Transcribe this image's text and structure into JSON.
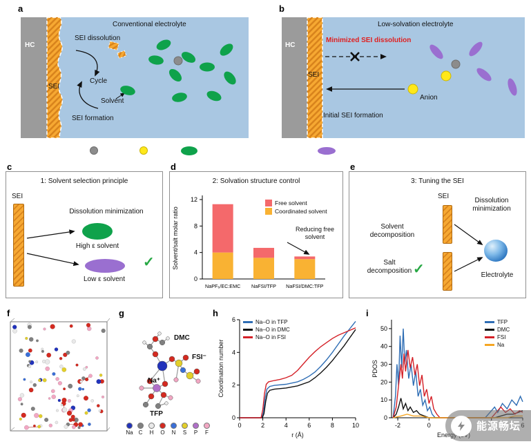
{
  "panels": {
    "a": {
      "label": "a",
      "title": "Conventional electrolyte",
      "hc": "HC",
      "sei": "SEI",
      "sei_dissolution": "SEI dissolution",
      "cycle": "Cycle",
      "solvent": "Solvent",
      "sei_formation": "SEI formation"
    },
    "b": {
      "label": "b",
      "title": "Low-solvation electrolyte",
      "hc": "HC",
      "sei": "SEI",
      "minimized_sei_dissolution": "Minimized SEI dissolution",
      "anion": "Anion",
      "initial_sei_formation": "Initial SEI formation"
    },
    "species_legend": {
      "na_ion": "Na ion",
      "anion": "Anion",
      "high_e_solvent": "High ε solvent",
      "low_e_solvent": "Low ε solvent"
    },
    "c": {
      "label": "c",
      "title": "1: Solvent selection principle",
      "sei": "SEI",
      "dissolution_minimization": "Dissolution minimization",
      "high_e_solvent": "High ε solvent",
      "low_e_solvent": "Low ε solvent",
      "check": "✓"
    },
    "d": {
      "label": "d",
      "title": "2: Solvation structure control"
    },
    "e": {
      "label": "e",
      "title": "3: Tuning the SEI",
      "sei": "SEI",
      "dissolution_minimization": "Dissolution minimization",
      "solvent_decomposition": "Solvent decomposition",
      "salt_decomposition": "Salt decomposition",
      "electrolyte": "Electrolyte",
      "check": "✓"
    },
    "f": {
      "label": "f"
    },
    "g": {
      "label": "g",
      "mol_dmc": "DMC",
      "mol_fsi": "FSI⁻",
      "mol_na": "Na⁺",
      "mol_tfp": "TFP",
      "atom_legend": [
        {
          "symbol": "Na",
          "color": "#2233bb"
        },
        {
          "symbol": "C",
          "color": "#808080"
        },
        {
          "symbol": "H",
          "color": "#e9e9e9"
        },
        {
          "symbol": "O",
          "color": "#d42a20"
        },
        {
          "symbol": "N",
          "color": "#3a6fd8"
        },
        {
          "symbol": "S",
          "color": "#e3cf2a"
        },
        {
          "symbol": "P",
          "color": "#b06fc8"
        },
        {
          "symbol": "F",
          "color": "#f2a7c3"
        }
      ]
    },
    "h": {
      "label": "h"
    },
    "i": {
      "label": "i"
    }
  },
  "colors": {
    "panel_background_blue": "#a9c7e2",
    "hc_gray": "#9b9b9b",
    "sei_orange": "#f6a832",
    "high_e_green": "#0fa24b",
    "low_e_purple": "#9a6fd0",
    "anion_yellow": "#ffe81a",
    "na_ion_gray": "#8c8c8c",
    "free_solvent_red": "#f4696b",
    "coordinated_solvent_orange": "#f9b233",
    "electrolyte_blue": "#3f82c9",
    "minimized_text_red": "#e01f1f",
    "check_green": "#27a844"
  },
  "chart_data": [
    {
      "id": "solvation-structure-control",
      "type": "bar",
      "stacked": true,
      "title": "2: Solvation structure control",
      "categories": [
        "NaPF₆/EC:EMC",
        "NaFSI/TFP",
        "NaFSI/DMC:TFP"
      ],
      "series": [
        {
          "name": "Coordinated solvent",
          "color": "#f9b233",
          "values": [
            4.0,
            3.2,
            3.0
          ]
        },
        {
          "name": "Free solvent",
          "color": "#f4696b",
          "values": [
            7.3,
            1.5,
            0.4
          ]
        }
      ],
      "xlabel": "",
      "ylabel": "Solvent/salt molar ratio",
      "ylim": [
        0,
        12
      ],
      "yticks": [
        0,
        4,
        8,
        12
      ],
      "annotation": "Reducing free solvent",
      "legend_position": "top-right"
    },
    {
      "id": "coordination-number",
      "type": "line",
      "xlabel": "r (Å)",
      "ylabel": "Coordination number",
      "xlim": [
        0,
        10
      ],
      "ylim": [
        0,
        6
      ],
      "xticks": [
        0,
        2,
        4,
        6,
        8,
        10
      ],
      "yticks": [
        0,
        2,
        4,
        6
      ],
      "legend_position": "top-left",
      "series": [
        {
          "name": "Na–O in TFP",
          "color": "#2e6db4",
          "points": [
            [
              0,
              0
            ],
            [
              1.9,
              0
            ],
            [
              2.05,
              0.3
            ],
            [
              2.2,
              1.2
            ],
            [
              2.35,
              1.75
            ],
            [
              2.6,
              1.92
            ],
            [
              3,
              1.98
            ],
            [
              4,
              2.05
            ],
            [
              5,
              2.2
            ],
            [
              5.5,
              2.35
            ],
            [
              6,
              2.55
            ],
            [
              6.5,
              2.8
            ],
            [
              7,
              3.15
            ],
            [
              7.5,
              3.55
            ],
            [
              8,
              4.0
            ],
            [
              8.5,
              4.5
            ],
            [
              9,
              5.0
            ],
            [
              9.5,
              5.45
            ],
            [
              10,
              5.9
            ]
          ]
        },
        {
          "name": "Na–O in DMC",
          "color": "#111111",
          "points": [
            [
              0,
              0
            ],
            [
              1.95,
              0
            ],
            [
              2.1,
              0.25
            ],
            [
              2.25,
              1.0
            ],
            [
              2.4,
              1.5
            ],
            [
              2.6,
              1.68
            ],
            [
              3,
              1.75
            ],
            [
              4,
              1.82
            ],
            [
              5,
              1.95
            ],
            [
              6,
              2.2
            ],
            [
              6.5,
              2.45
            ],
            [
              7,
              2.75
            ],
            [
              7.5,
              3.1
            ],
            [
              8,
              3.5
            ],
            [
              8.5,
              3.95
            ],
            [
              9,
              4.4
            ],
            [
              9.5,
              4.9
            ],
            [
              10,
              5.4
            ]
          ]
        },
        {
          "name": "Na–O in FSI",
          "color": "#d42027",
          "points": [
            [
              0,
              0
            ],
            [
              1.85,
              0
            ],
            [
              2.0,
              0.5
            ],
            [
              2.15,
              1.5
            ],
            [
              2.3,
              2.05
            ],
            [
              2.5,
              2.2
            ],
            [
              3,
              2.28
            ],
            [
              3.5,
              2.35
            ],
            [
              4,
              2.45
            ],
            [
              4.5,
              2.6
            ],
            [
              5,
              2.9
            ],
            [
              5.5,
              3.3
            ],
            [
              6,
              3.7
            ],
            [
              6.5,
              4.05
            ],
            [
              7,
              4.35
            ],
            [
              7.5,
              4.6
            ],
            [
              8,
              4.85
            ],
            [
              8.5,
              5.05
            ],
            [
              9,
              5.2
            ],
            [
              9.5,
              5.35
            ],
            [
              10,
              5.5
            ]
          ]
        }
      ]
    },
    {
      "id": "pdos",
      "type": "line",
      "xlabel": "Energy (eV)",
      "ylabel": "PDOS",
      "xlim": [
        -2.4,
        6
      ],
      "ylim": [
        0,
        55
      ],
      "xticks": [
        -2,
        0,
        2,
        4,
        6
      ],
      "yticks": [
        0,
        10,
        20,
        30,
        40,
        50
      ],
      "legend_position": "top-right",
      "series": [
        {
          "name": "TFP",
          "color": "#2e6db4",
          "points": [
            [
              -2.3,
              0
            ],
            [
              -2.15,
              12
            ],
            [
              -2.05,
              30
            ],
            [
              -1.95,
              18
            ],
            [
              -1.85,
              46
            ],
            [
              -1.75,
              28
            ],
            [
              -1.65,
              50
            ],
            [
              -1.55,
              30
            ],
            [
              -1.45,
              38
            ],
            [
              -1.3,
              22
            ],
            [
              -1.15,
              30
            ],
            [
              -1.0,
              18
            ],
            [
              -0.85,
              26
            ],
            [
              -0.7,
              12
            ],
            [
              -0.55,
              16
            ],
            [
              -0.4,
              7
            ],
            [
              -0.25,
              10
            ],
            [
              -0.1,
              4
            ],
            [
              0.05,
              6
            ],
            [
              0.2,
              2
            ],
            [
              0.4,
              0
            ],
            [
              3.6,
              0
            ],
            [
              3.9,
              3
            ],
            [
              4.2,
              6
            ],
            [
              4.4,
              3
            ],
            [
              4.7,
              8
            ],
            [
              5.0,
              5
            ],
            [
              5.3,
              10
            ],
            [
              5.6,
              7
            ],
            [
              5.85,
              12
            ],
            [
              6,
              9
            ]
          ]
        },
        {
          "name": "DMC",
          "color": "#111111",
          "points": [
            [
              -2.3,
              0
            ],
            [
              -2.1,
              2
            ],
            [
              -1.95,
              6
            ],
            [
              -1.8,
              11
            ],
            [
              -1.65,
              5
            ],
            [
              -1.5,
              8
            ],
            [
              -1.35,
              4
            ],
            [
              -1.2,
              6
            ],
            [
              -1.0,
              3
            ],
            [
              -0.8,
              4
            ],
            [
              -0.6,
              2
            ],
            [
              -0.3,
              1
            ],
            [
              0,
              0
            ],
            [
              4.2,
              0
            ],
            [
              4.6,
              1
            ],
            [
              5.0,
              2
            ],
            [
              5.4,
              2
            ],
            [
              5.7,
              3
            ],
            [
              6,
              4
            ]
          ]
        },
        {
          "name": "FSI",
          "color": "#d42027",
          "points": [
            [
              -2.3,
              0
            ],
            [
              -2.1,
              6
            ],
            [
              -1.95,
              18
            ],
            [
              -1.8,
              30
            ],
            [
              -1.7,
              22
            ],
            [
              -1.6,
              36
            ],
            [
              -1.5,
              26
            ],
            [
              -1.35,
              38
            ],
            [
              -1.2,
              28
            ],
            [
              -1.05,
              34
            ],
            [
              -0.9,
              24
            ],
            [
              -0.75,
              30
            ],
            [
              -0.6,
              18
            ],
            [
              -0.45,
              24
            ],
            [
              -0.3,
              12
            ],
            [
              -0.15,
              16
            ],
            [
              0,
              8
            ],
            [
              0.15,
              12
            ],
            [
              0.3,
              5
            ],
            [
              0.5,
              2
            ],
            [
              0.7,
              0
            ],
            [
              4.0,
              0
            ],
            [
              4.3,
              3
            ],
            [
              4.6,
              6
            ],
            [
              4.9,
              3
            ],
            [
              5.2,
              5
            ],
            [
              5.5,
              2
            ],
            [
              5.8,
              4
            ],
            [
              6,
              3
            ]
          ]
        },
        {
          "name": "Na",
          "color": "#f5a623",
          "points": [
            [
              -2.3,
              0
            ],
            [
              -1.8,
              1
            ],
            [
              -1.4,
              2
            ],
            [
              -1.0,
              1
            ],
            [
              -0.5,
              1
            ],
            [
              0,
              0
            ],
            [
              5,
              0
            ],
            [
              5.5,
              1
            ],
            [
              6,
              1
            ]
          ]
        }
      ]
    }
  ],
  "watermark": {
    "text": "能源畅坛"
  }
}
